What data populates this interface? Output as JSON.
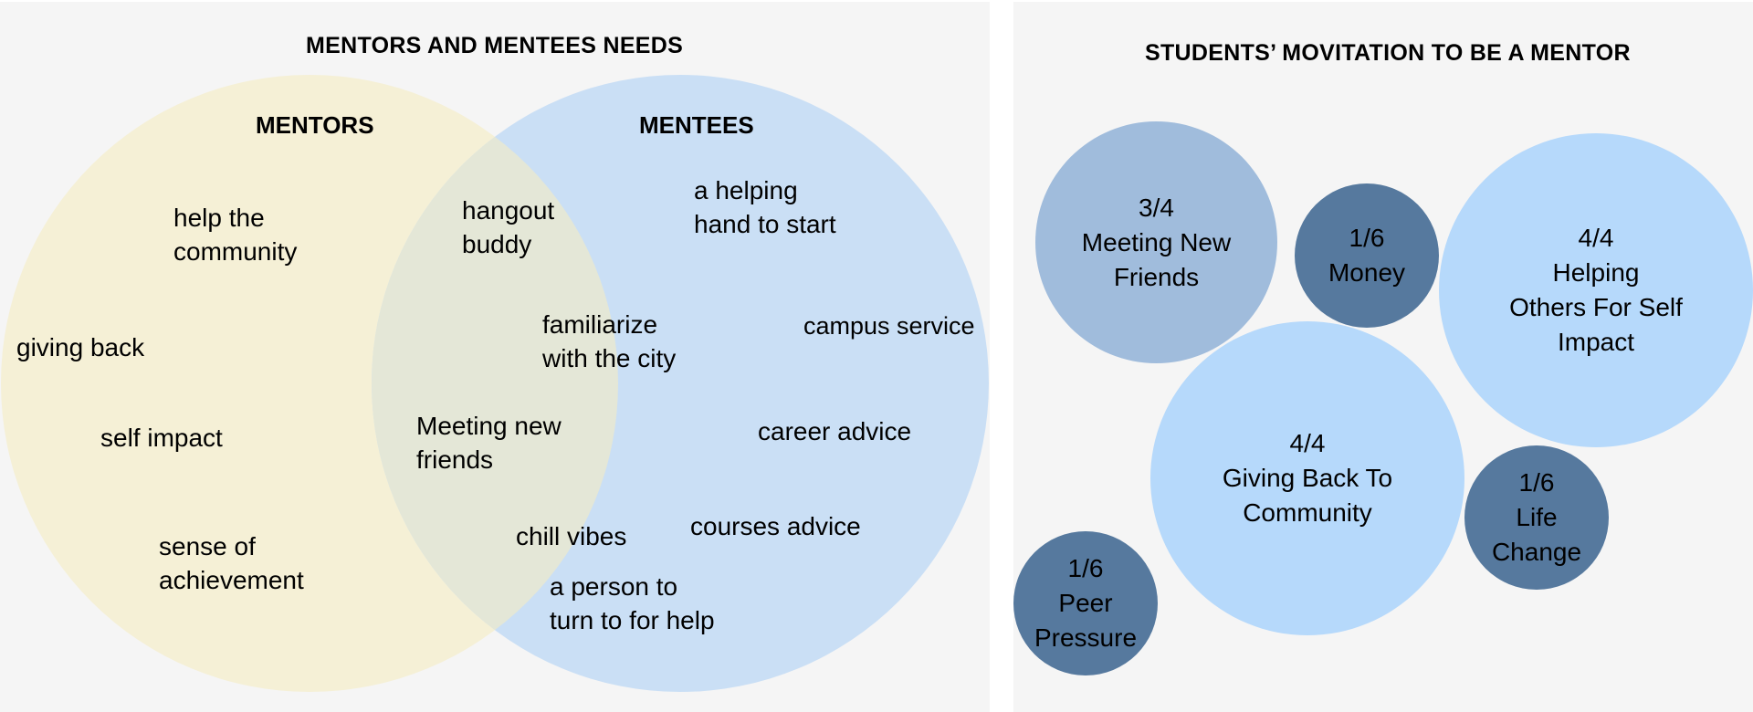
{
  "venn": {
    "title": "MENTORS AND MENTEES NEEDS",
    "mentors_heading": "MENTORS",
    "mentees_heading": "MENTEES",
    "mentors_only": [
      [
        "help the",
        "community"
      ],
      [
        "giving back"
      ],
      [
        "self impact"
      ],
      [
        "sense of",
        "achievement"
      ]
    ],
    "shared": [
      [
        "hangout",
        "buddy"
      ],
      [
        "familiarize",
        "with the city"
      ],
      [
        "Meeting new",
        "friends"
      ],
      [
        "chill vibes"
      ],
      [
        "a person to",
        "turn to for help"
      ]
    ],
    "mentees_only": [
      [
        "a helping",
        "hand to start"
      ],
      [
        "campus service"
      ],
      [
        "career advice"
      ],
      [
        "courses advice"
      ]
    ],
    "colors": {
      "mentors": "#f5f0d6",
      "mentees": "#cadff5",
      "overlap": "#e4e7d7"
    }
  },
  "motivation": {
    "title": "STUDENTS’ MOVITATION TO BE A MENTOR",
    "bubbles": [
      {
        "score": "3/4",
        "lines": [
          "Meeting New",
          "Friends"
        ],
        "color": "#a0bcdc"
      },
      {
        "score": "1/6",
        "lines": [
          "Money"
        ],
        "color": "#56799e"
      },
      {
        "score": "4/4",
        "lines": [
          "Helping",
          "Others For Self",
          "Impact"
        ],
        "color": "#b6d9fb"
      },
      {
        "score": "4/4",
        "lines": [
          "Giving Back To",
          "Community"
        ],
        "color": "#b6d9fb"
      },
      {
        "score": "1/6",
        "lines": [
          "Life",
          "Change"
        ],
        "color": "#56799e"
      },
      {
        "score": "1/6",
        "lines": [
          "Peer",
          "Pressure"
        ],
        "color": "#56799e"
      }
    ]
  }
}
